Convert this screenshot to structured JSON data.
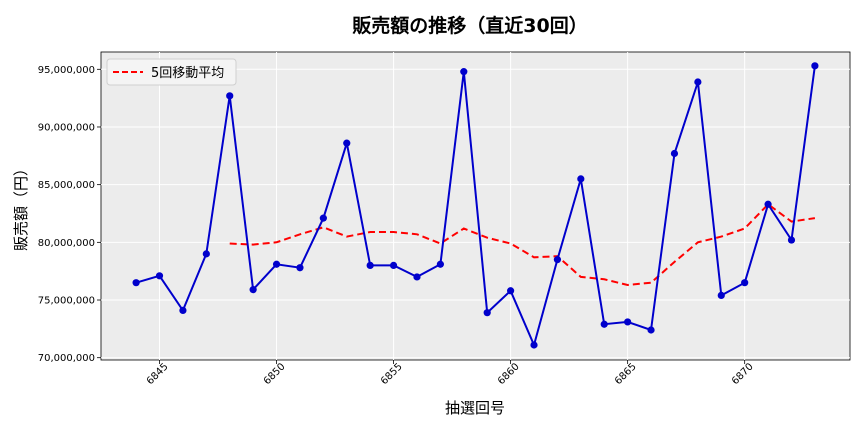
{
  "chart_data": {
    "type": "line",
    "title": "販売額の推移（直近30回）",
    "xlabel": "抽選回号",
    "ylabel": "販売額（円）",
    "xlim": [
      6842.5,
      6874.5
    ],
    "ylim": [
      69800000,
      96500000
    ],
    "grid": true,
    "legend_placement": "top-left",
    "x_ticks": [
      6845,
      6850,
      6855,
      6860,
      6865,
      6870
    ],
    "x_tick_labels": [
      "6845",
      "6850",
      "6855",
      "6860",
      "6865",
      "6870"
    ],
    "y_ticks": [
      70000000,
      75000000,
      80000000,
      85000000,
      90000000,
      95000000
    ],
    "y_tick_labels": [
      "70,000,000",
      "75,000,000",
      "80,000,000",
      "85,000,000",
      "90,000,000",
      "95,000,000"
    ],
    "x": [
      6844,
      6845,
      6846,
      6847,
      6848,
      6849,
      6850,
      6851,
      6852,
      6853,
      6854,
      6855,
      6856,
      6857,
      6858,
      6859,
      6860,
      6861,
      6862,
      6863,
      6864,
      6865,
      6866,
      6867,
      6868,
      6869,
      6870,
      6871,
      6872,
      6873
    ],
    "series": [
      {
        "color": "#0000cc",
        "style": "solid",
        "marker": "circle",
        "values": [
          76500000,
          77100000,
          74100000,
          79000000,
          92700000,
          75900000,
          78100000,
          77800000,
          82100000,
          88600000,
          78000000,
          78000000,
          77000000,
          78100000,
          94800000,
          73900000,
          75800000,
          71100000,
          78500000,
          85500000,
          72900000,
          73100000,
          72400000,
          87700000,
          93900000,
          75400000,
          76500000,
          83300000,
          80200000,
          95300000
        ]
      },
      {
        "name": "5回移動平均",
        "color": "#ff0000",
        "style": "dashed",
        "marker": "none",
        "values": [
          null,
          null,
          null,
          null,
          79900000,
          79800000,
          80000000,
          80700000,
          81300000,
          80500000,
          80900000,
          80900000,
          80700000,
          79900000,
          81200000,
          80400000,
          79900000,
          78700000,
          78800000,
          77000000,
          76800000,
          76300000,
          76500000,
          78300000,
          80000000,
          80500000,
          81200000,
          83300000,
          81800000,
          82100000
        ]
      }
    ]
  }
}
